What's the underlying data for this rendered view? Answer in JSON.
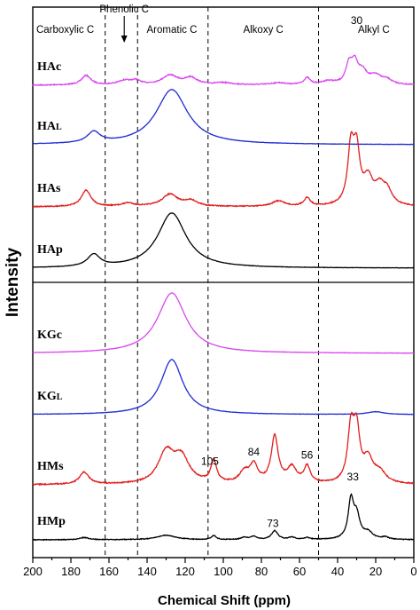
{
  "chart_data": {
    "type": "line",
    "title": "",
    "xlabel": "Chemical Shift (ppm)",
    "ylabel": "Intensity",
    "xlim": [
      200,
      0
    ],
    "x_reversed": true,
    "x_ticks": [
      200,
      180,
      160,
      140,
      120,
      100,
      80,
      60,
      40,
      20,
      0
    ],
    "y_ticks_shown": false,
    "grid": false,
    "dividers_ppm": [
      162,
      145,
      108,
      50
    ],
    "regions": [
      {
        "label": "Carboxylic C",
        "ppm": 183
      },
      {
        "label": "Aromatic C",
        "ppm": 127
      },
      {
        "label": "Alkoxy C",
        "ppm": 79
      },
      {
        "label": "Alkyl C",
        "ppm": 21
      }
    ],
    "arrow_annotation": {
      "label": "Phenolic C",
      "ppm": 152
    },
    "panels": [
      {
        "name": "top",
        "series": [
          "HAc",
          "HAL",
          "HAs",
          "HAp"
        ]
      },
      {
        "name": "bottom",
        "series": [
          "KGc",
          "KGL",
          "HMs",
          "HMp"
        ]
      }
    ],
    "series": [
      {
        "name": "HAc",
        "name_main": "HA",
        "name_suffix": "c",
        "color": "#d946ef",
        "panel": 0,
        "slot": 0,
        "noise": 0.35,
        "peaks": [
          [
            172,
            3,
            0.28
          ],
          [
            152,
            4,
            0.12
          ],
          [
            146,
            3,
            0.12
          ],
          [
            128,
            5,
            0.28
          ],
          [
            117,
            4,
            0.2
          ],
          [
            100,
            6,
            0.06
          ],
          [
            71,
            5,
            0.06
          ],
          [
            56,
            2,
            0.2
          ],
          [
            45,
            4,
            0.1
          ],
          [
            34,
            2,
            0.55
          ],
          [
            31,
            2,
            0.55
          ],
          [
            27,
            3,
            0.35
          ],
          [
            20,
            4,
            0.25
          ],
          [
            14,
            3,
            0.12
          ]
        ]
      },
      {
        "name": "HAL",
        "name_main": "HA",
        "name_suffix": "L",
        "color": "#1d2bd4",
        "panel": 0,
        "slot": 1,
        "noise": 0.12,
        "peaks": [
          [
            168,
            4,
            0.2
          ],
          [
            127,
            10,
            1.0
          ]
        ]
      },
      {
        "name": "HAs",
        "name_main": "HA",
        "name_suffix": "s",
        "color": "#e11d1d",
        "panel": 0,
        "slot": 2,
        "noise": 0.35,
        "peaks": [
          [
            172,
            3,
            0.3
          ],
          [
            150,
            4,
            0.06
          ],
          [
            128,
            5,
            0.22
          ],
          [
            117,
            4,
            0.1
          ],
          [
            71,
            4,
            0.1
          ],
          [
            56,
            2,
            0.15
          ],
          [
            33,
            2,
            1.0
          ],
          [
            30,
            2,
            0.9
          ],
          [
            24,
            3,
            0.45
          ],
          [
            18,
            3,
            0.3
          ],
          [
            14,
            3,
            0.25
          ]
        ]
      },
      {
        "name": "HAp",
        "name_main": "HA",
        "name_suffix": "p",
        "color": "#000000",
        "panel": 0,
        "slot": 3,
        "noise": 0.12,
        "peaks": [
          [
            168,
            4,
            0.22
          ],
          [
            127,
            9,
            1.0
          ]
        ]
      },
      {
        "name": "KGc",
        "name_main": "KG",
        "name_suffix": "c",
        "color": "#d946ef",
        "panel": 1,
        "slot": 0,
        "noise": 0.12,
        "peaks": [
          [
            127,
            9,
            1.0
          ]
        ]
      },
      {
        "name": "KGL",
        "name_main": "KG",
        "name_suffix": "L",
        "color": "#1d2bd4",
        "panel": 1,
        "slot": 1,
        "noise": 0.12,
        "peaks": [
          [
            127,
            7,
            1.0
          ],
          [
            20,
            5,
            0.05
          ]
        ]
      },
      {
        "name": "HMs",
        "name_main": "HM",
        "name_suffix": "s",
        "color": "#e11d1d",
        "panel": 1,
        "slot": 2,
        "noise": 0.4,
        "peaks": [
          [
            173,
            3,
            0.22
          ],
          [
            130,
            5,
            0.55
          ],
          [
            122,
            5,
            0.45
          ],
          [
            105,
            1.8,
            0.4
          ],
          [
            89,
            3,
            0.2
          ],
          [
            84,
            2.5,
            0.32
          ],
          [
            73,
            2.2,
            0.85
          ],
          [
            64,
            3,
            0.28
          ],
          [
            56,
            2,
            0.3
          ],
          [
            33,
            2,
            0.95
          ],
          [
            30,
            2,
            0.88
          ],
          [
            24,
            3,
            0.4
          ],
          [
            18,
            4,
            0.2
          ]
        ]
      },
      {
        "name": "HMp",
        "name_main": "HM",
        "name_suffix": "p",
        "color": "#000000",
        "panel": 1,
        "slot": 3,
        "noise": 0.25,
        "peaks": [
          [
            173,
            3,
            0.05
          ],
          [
            130,
            6,
            0.1
          ],
          [
            105,
            1.5,
            0.09
          ],
          [
            89,
            2,
            0.05
          ],
          [
            84,
            2,
            0.07
          ],
          [
            73,
            2,
            0.2
          ],
          [
            64,
            2,
            0.05
          ],
          [
            56,
            2,
            0.04
          ],
          [
            33,
            1.7,
            0.85
          ],
          [
            30,
            2,
            0.5
          ],
          [
            24,
            3,
            0.15
          ],
          [
            15,
            2,
            0.05
          ]
        ]
      }
    ],
    "peak_labels": [
      {
        "text": "30",
        "ppm": 30,
        "series": "HAc"
      },
      {
        "text": "105",
        "ppm": 107,
        "series": "HMs"
      },
      {
        "text": "84",
        "ppm": 84,
        "series": "HMs"
      },
      {
        "text": "56",
        "ppm": 56,
        "series": "HMs"
      },
      {
        "text": "73",
        "ppm": 74,
        "series": "HMp"
      },
      {
        "text": "33",
        "ppm": 32,
        "series": "HMp"
      }
    ]
  }
}
